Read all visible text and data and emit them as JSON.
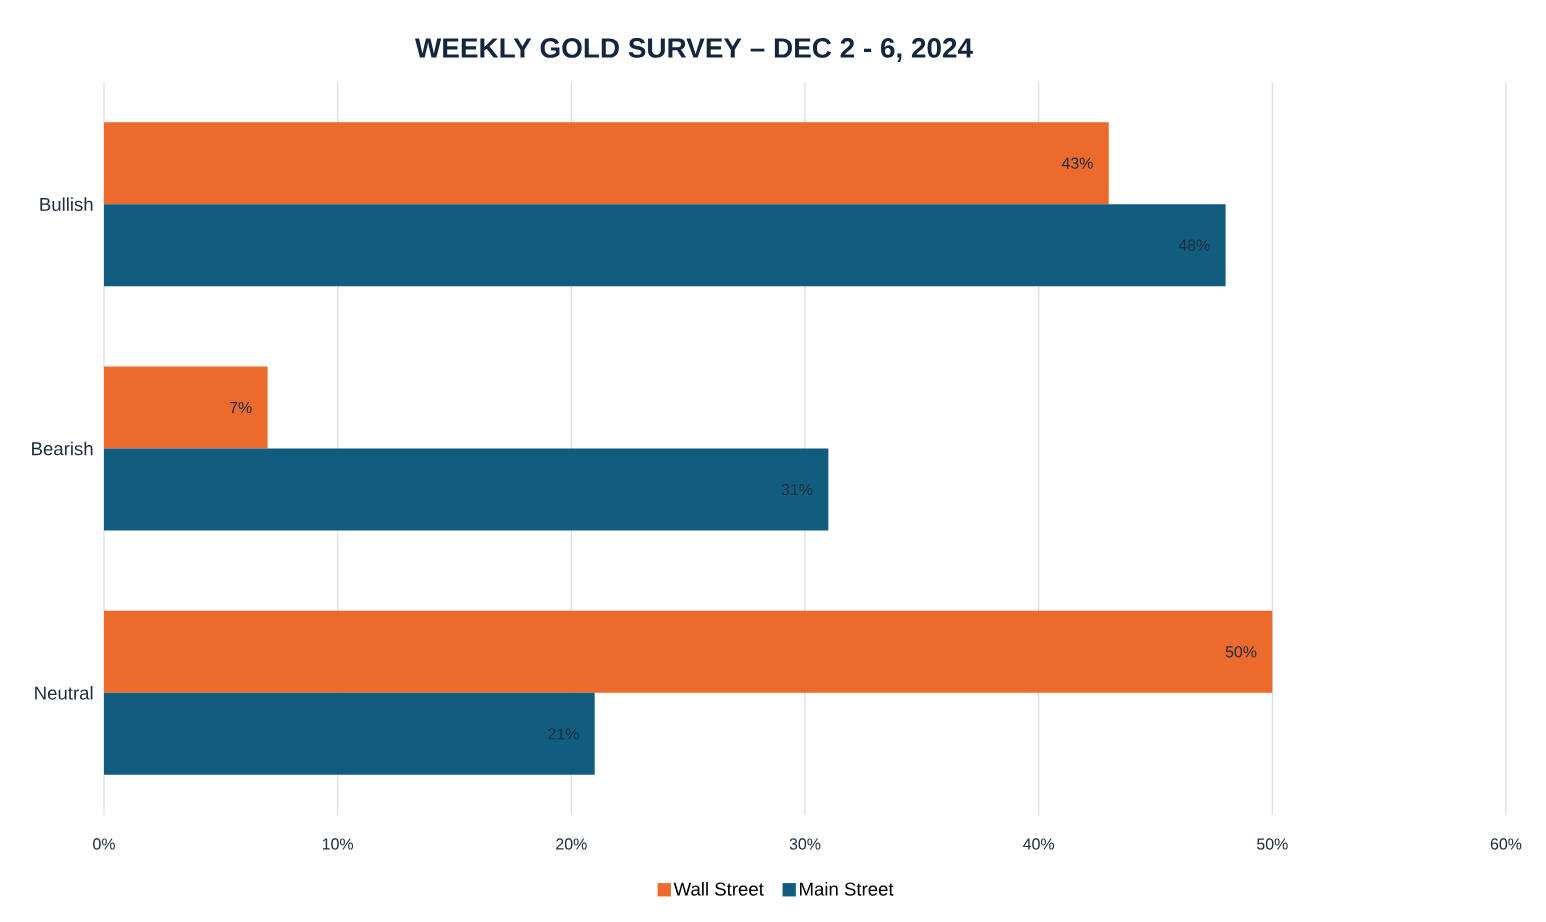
{
  "chart_data": {
    "type": "bar",
    "orientation": "horizontal",
    "title": "WEEKLY GOLD SURVEY – DEC 2 - 6, 2024",
    "categories": [
      "Bullish",
      "Bearish",
      "Neutral"
    ],
    "series": [
      {
        "name": "Wall Street",
        "color": "#ec6a2c",
        "values": [
          43,
          7,
          50
        ],
        "value_labels": [
          "43%",
          "7%",
          "50%"
        ]
      },
      {
        "name": "Main Street",
        "color": "#115d80",
        "values": [
          48,
          31,
          21
        ],
        "value_labels": [
          "48%",
          "31%",
          "21%"
        ]
      }
    ],
    "xlim": [
      0,
      60
    ],
    "xticks": [
      {
        "value": 0,
        "label": "0%"
      },
      {
        "value": 10,
        "label": "10%"
      },
      {
        "value": 20,
        "label": "20%"
      },
      {
        "value": 30,
        "label": "30%"
      },
      {
        "value": 40,
        "label": "40%"
      },
      {
        "value": 50,
        "label": "50%"
      },
      {
        "value": 60,
        "label": "60%"
      }
    ],
    "grid": "x",
    "legend": "bottom"
  }
}
